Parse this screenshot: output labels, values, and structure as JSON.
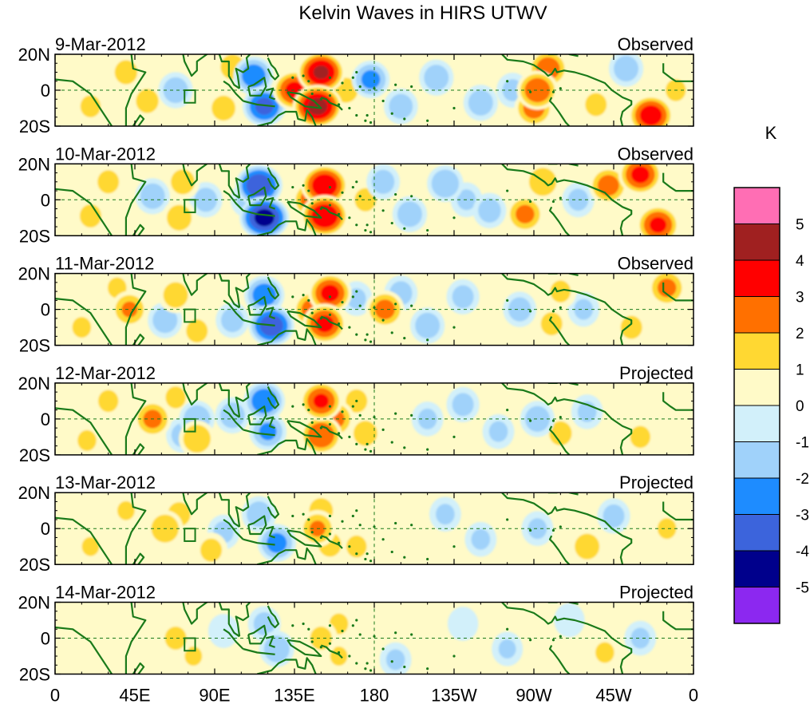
{
  "chart_data": {
    "type": "heatmap",
    "title": "Kelvin Waves in HIRS UTWV",
    "x_ticks": [
      "0",
      "45E",
      "90E",
      "135E",
      "180",
      "135W",
      "90W",
      "45W",
      "0"
    ],
    "y_ticks": [
      "20N",
      "0",
      "20S"
    ],
    "ylim": [
      -20,
      20
    ],
    "xlim": [
      0,
      360
    ],
    "colorbar": {
      "unit": "K",
      "levels": [
        "5",
        "4",
        "3",
        "2",
        "1",
        "0",
        "-1",
        "-2",
        "-3",
        "-4",
        "-5"
      ],
      "colors": [
        "#ff6eb4",
        "#a02020",
        "#ff0000",
        "#ff7000",
        "#ffd832",
        "#fffac8",
        "#d2f0fa",
        "#a0d2fa",
        "#1e8cff",
        "#3c64dc",
        "#00008c",
        "#8c28f0"
      ]
    },
    "panels": [
      {
        "date": "9-Mar-2012",
        "label": "Observed",
        "blobs": [
          [
            20,
            -9,
            1.2
          ],
          [
            40,
            10,
            1.4
          ],
          [
            52,
            -6,
            1.4
          ],
          [
            68,
            0,
            -1.6
          ],
          [
            95,
            -10,
            1.5
          ],
          [
            100,
            13,
            1.5
          ],
          [
            112,
            8,
            -2.6
          ],
          [
            118,
            -9,
            -3.2
          ],
          [
            135,
            0,
            3.2
          ],
          [
            148,
            -9,
            4.3
          ],
          [
            150,
            10,
            4.0
          ],
          [
            164,
            0,
            1.5
          ],
          [
            178,
            6,
            -2.2
          ],
          [
            195,
            -9,
            -1.5
          ],
          [
            215,
            7,
            -1.6
          ],
          [
            240,
            -7,
            -1.6
          ],
          [
            258,
            0,
            -1.2
          ],
          [
            272,
            0,
            2.8
          ],
          [
            270,
            -10,
            2.4
          ],
          [
            278,
            12,
            2.6
          ],
          [
            305,
            -8,
            1.3
          ],
          [
            322,
            12,
            -1.6
          ],
          [
            336,
            -14,
            3.5
          ],
          [
            350,
            0,
            1.2
          ]
        ]
      },
      {
        "date": "10-Mar-2012",
        "label": "Observed",
        "blobs": [
          [
            20,
            -9,
            1.3
          ],
          [
            30,
            10,
            1.3
          ],
          [
            55,
            2,
            -1.6
          ],
          [
            72,
            10,
            1.5
          ],
          [
            70,
            -10,
            1.6
          ],
          [
            85,
            0,
            -1.4
          ],
          [
            115,
            8,
            -3.8
          ],
          [
            118,
            -10,
            -4.3
          ],
          [
            108,
            0,
            -1.2
          ],
          [
            152,
            8,
            3.8
          ],
          [
            152,
            -9,
            3.9
          ],
          [
            145,
            0,
            2.6
          ],
          [
            175,
            0,
            1.3
          ],
          [
            185,
            10,
            -1.4
          ],
          [
            200,
            -8,
            -1.6
          ],
          [
            220,
            9,
            -1.9
          ],
          [
            245,
            -6,
            -1.4
          ],
          [
            232,
            0,
            -1.1
          ],
          [
            265,
            -8,
            2.2
          ],
          [
            275,
            10,
            1.9
          ],
          [
            312,
            8,
            2.4
          ],
          [
            330,
            14,
            3.2
          ],
          [
            340,
            -14,
            3.1
          ],
          [
            295,
            0,
            -1.2
          ]
        ]
      },
      {
        "date": "11-Mar-2012",
        "label": "Observed",
        "blobs": [
          [
            15,
            -10,
            1.1
          ],
          [
            35,
            12,
            1.1
          ],
          [
            42,
            0,
            2.0
          ],
          [
            62,
            -6,
            -1.6
          ],
          [
            68,
            8,
            1.6
          ],
          [
            80,
            -12,
            1.3
          ],
          [
            100,
            -6,
            -1.4
          ],
          [
            118,
            8,
            -2.6
          ],
          [
            122,
            -9,
            -3.6
          ],
          [
            155,
            9,
            3.2
          ],
          [
            152,
            -8,
            3.2
          ],
          [
            145,
            0,
            2.4
          ],
          [
            170,
            6,
            -1.1
          ],
          [
            186,
            0,
            2.3
          ],
          [
            195,
            9,
            -1.4
          ],
          [
            210,
            -9,
            -1.6
          ],
          [
            230,
            7,
            -1.3
          ],
          [
            262,
            0,
            -1.4
          ],
          [
            280,
            -8,
            1.3
          ],
          [
            285,
            10,
            1.2
          ],
          [
            298,
            0,
            -1.1
          ],
          [
            325,
            -10,
            1.3
          ],
          [
            345,
            12,
            2.2
          ]
        ]
      },
      {
        "date": "12-Mar-2012",
        "label": "Projected",
        "blobs": [
          [
            18,
            -12,
            1.1
          ],
          [
            30,
            10,
            1.2
          ],
          [
            55,
            0,
            2.2
          ],
          [
            68,
            12,
            1.2
          ],
          [
            72,
            -9,
            -1.4
          ],
          [
            80,
            0,
            -1.8
          ],
          [
            80,
            -11,
            1.9
          ],
          [
            100,
            2,
            -1.6
          ],
          [
            118,
            10,
            -2.8
          ],
          [
            120,
            -7,
            -2.1
          ],
          [
            150,
            10,
            3.0
          ],
          [
            150,
            -9,
            2.9
          ],
          [
            158,
            0,
            2.2
          ],
          [
            170,
            10,
            1.3
          ],
          [
            175,
            -8,
            1.5
          ],
          [
            210,
            0,
            -1.1
          ],
          [
            230,
            8,
            -1.3
          ],
          [
            250,
            -7,
            -1.1
          ],
          [
            272,
            0,
            -1.6
          ],
          [
            285,
            -8,
            1.4
          ],
          [
            300,
            4,
            -1.1
          ],
          [
            330,
            -10,
            1.2
          ]
        ]
      },
      {
        "date": "13-Mar-2012",
        "label": "Projected",
        "blobs": [
          [
            20,
            -10,
            1.0
          ],
          [
            40,
            10,
            1.0
          ],
          [
            62,
            0,
            1.9
          ],
          [
            70,
            8,
            1.4
          ],
          [
            88,
            -12,
            1.3
          ],
          [
            95,
            -2,
            -1.2
          ],
          [
            115,
            8,
            -1.6
          ],
          [
            125,
            -8,
            -2.3
          ],
          [
            148,
            0,
            2.0
          ],
          [
            150,
            10,
            1.5
          ],
          [
            155,
            -9,
            1.4
          ],
          [
            170,
            -10,
            1.2
          ],
          [
            220,
            8,
            -1.1
          ],
          [
            240,
            -6,
            -1.1
          ],
          [
            272,
            0,
            -1.1
          ],
          [
            300,
            -10,
            1.6
          ],
          [
            315,
            7,
            -1.3
          ],
          [
            345,
            0,
            1.1
          ]
        ]
      },
      {
        "date": "14-Mar-2012",
        "label": "Projected",
        "blobs": [
          [
            20,
            -8,
            0.9
          ],
          [
            40,
            8,
            0.9
          ],
          [
            68,
            0,
            1.3
          ],
          [
            78,
            -10,
            1.0
          ],
          [
            95,
            4,
            -0.9
          ],
          [
            118,
            8,
            -1.3
          ],
          [
            125,
            -6,
            -1.7
          ],
          [
            150,
            0,
            1.3
          ],
          [
            160,
            8,
            1.1
          ],
          [
            160,
            -10,
            1.0
          ],
          [
            192,
            -12,
            -1.1
          ],
          [
            230,
            8,
            -0.9
          ],
          [
            255,
            -6,
            -1.0
          ],
          [
            290,
            10,
            -0.9
          ],
          [
            310,
            -8,
            1.1
          ],
          [
            330,
            0,
            -1.1
          ],
          [
            350,
            10,
            0.9
          ]
        ]
      }
    ]
  }
}
